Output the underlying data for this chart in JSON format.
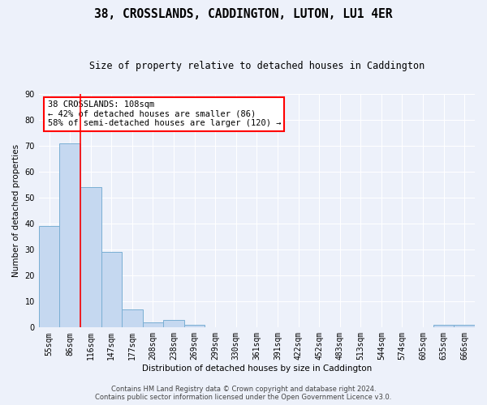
{
  "title": "38, CROSSLANDS, CADDINGTON, LUTON, LU1 4ER",
  "subtitle": "Size of property relative to detached houses in Caddington",
  "xlabel": "Distribution of detached houses by size in Caddington",
  "ylabel": "Number of detached properties",
  "bar_labels": [
    "55sqm",
    "86sqm",
    "116sqm",
    "147sqm",
    "177sqm",
    "208sqm",
    "238sqm",
    "269sqm",
    "299sqm",
    "330sqm",
    "361sqm",
    "391sqm",
    "422sqm",
    "452sqm",
    "483sqm",
    "513sqm",
    "544sqm",
    "574sqm",
    "605sqm",
    "635sqm",
    "666sqm"
  ],
  "bar_values": [
    39,
    71,
    54,
    29,
    7,
    2,
    3,
    1,
    0,
    0,
    0,
    0,
    0,
    0,
    0,
    0,
    0,
    0,
    0,
    1,
    1
  ],
  "bar_color": "#c5d8f0",
  "bar_edge_color": "#7aafd4",
  "annotation_text": "38 CROSSLANDS: 108sqm\n← 42% of detached houses are smaller (86)\n58% of semi-detached houses are larger (120) →",
  "annotation_box_color": "white",
  "annotation_box_edge_color": "red",
  "vline_color": "red",
  "vline_x": 1.5,
  "ylim": [
    0,
    90
  ],
  "yticks": [
    0,
    10,
    20,
    30,
    40,
    50,
    60,
    70,
    80,
    90
  ],
  "footer_line1": "Contains HM Land Registry data © Crown copyright and database right 2024.",
  "footer_line2": "Contains public sector information licensed under the Open Government Licence v3.0.",
  "background_color": "#edf1fa",
  "grid_color": "white",
  "title_fontsize": 10.5,
  "subtitle_fontsize": 8.5,
  "tick_fontsize": 7,
  "ylabel_fontsize": 7.5,
  "xlabel_fontsize": 7.5,
  "footer_fontsize": 6
}
